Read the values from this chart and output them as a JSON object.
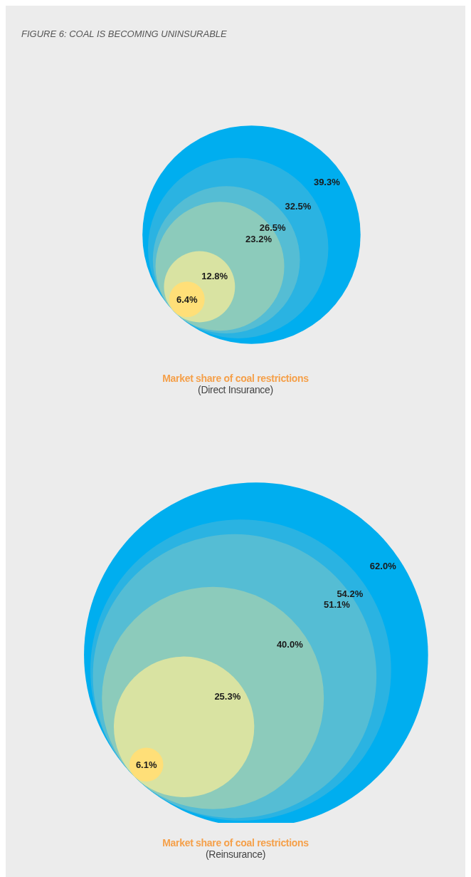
{
  "chart_data": [
    {
      "type": "other",
      "title": "FIGURE 6: COAL IS BECOMING UNINSURABLE",
      "xlabel": "Market share of coal restrictions",
      "annotations": [
        "(Direct Insurance)"
      ],
      "values": [
        39.3,
        32.5,
        26.5,
        23.2,
        12.8,
        6.4
      ],
      "value_labels": [
        "39.3%",
        "32.5%",
        "26.5%",
        "23.2%",
        "12.8%",
        "6.4%"
      ],
      "colors": [
        "#00aeef",
        "#2ab3e2",
        "#55bdd4",
        "#8ccbbb",
        "#d9e3a2",
        "#ffdf78"
      ]
    },
    {
      "type": "other",
      "xlabel": "Market share of coal restrictions",
      "annotations": [
        "(Reinsurance)"
      ],
      "values": [
        62.0,
        54.2,
        51.1,
        40.0,
        25.3,
        6.1
      ],
      "value_labels": [
        "62.0%",
        "54.2%",
        "51.1%",
        "40.0%",
        "25.3%",
        "6.1%"
      ],
      "colors": [
        "#00aeef",
        "#2ab3e2",
        "#55bdd4",
        "#8ccbbb",
        "#d9e3a2",
        "#ffdf78"
      ]
    }
  ]
}
